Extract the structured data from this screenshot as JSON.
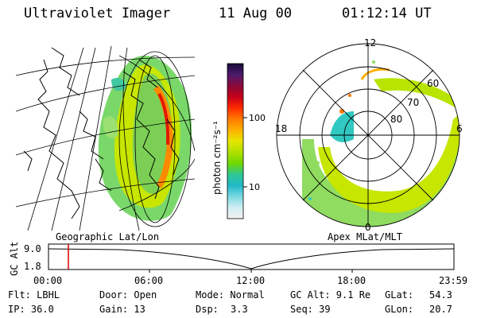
{
  "header": {
    "title": "Ultraviolet Imager",
    "date": "11 Aug 00",
    "time": "01:12:14 UT"
  },
  "colorbar": {
    "unit_label": "photon cm⁻²s⁻¹",
    "ticks": [
      "100",
      "10"
    ],
    "colors": [
      "#1a0a3a",
      "#4b1a6a",
      "#8a0a3a",
      "#c4001a",
      "#ff2a00",
      "#ff7a00",
      "#ffb000",
      "#e6e600",
      "#b0e000",
      "#70d800",
      "#30c890",
      "#20b8c8",
      "#7ad8e0",
      "#cfeef4",
      "#f2f2f2"
    ]
  },
  "left_map": {
    "label": "Geographic Lat/Lon"
  },
  "right_map": {
    "label": "Apex MLat/MLT",
    "mlt_labels": {
      "noon": "12",
      "midnight": "0",
      "dusk": "18",
      "dawn": "6"
    },
    "lat_labels": [
      "60",
      "70",
      "80"
    ]
  },
  "timeline": {
    "y_axis_label": "GC Alt",
    "y_ticks": [
      "9.0",
      "1.8"
    ],
    "x_ticks": [
      "00:00",
      "06:00",
      "12:00",
      "18:00",
      "23:59"
    ],
    "marker_color": "#d40000"
  },
  "info": {
    "row1": {
      "filter": "Flt: LBHL",
      "door": "Door: Open",
      "mode": "Mode: Normal",
      "gc_alt": "GC Alt: 9.1 Re",
      "glat_label": "GLat:",
      "glat_value": "54.3"
    },
    "row2": {
      "ip": "IP: 36.0",
      "gain": "Gain: 13",
      "dsp_label": "Dsp:",
      "dsp_value": "3.3",
      "seq": "Seq: 39",
      "glon_label": "GLon:",
      "glon_value": "20.7"
    }
  }
}
